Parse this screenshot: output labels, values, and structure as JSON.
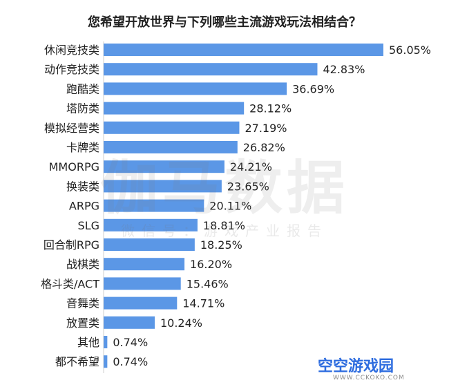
{
  "chart_data": {
    "type": "bar",
    "orientation": "horizontal",
    "title": "您希望开放世界与下列哪些主流游戏玩法相结合？",
    "categories": [
      "休闲竞技类",
      "动作竞技类",
      "跑酷类",
      "塔防类",
      "模拟经营类",
      "卡牌类",
      "MMORPG",
      "换装类",
      "ARPG",
      "SLG",
      "回合制RPG",
      "战棋类",
      "格斗类/ACT",
      "音舞类",
      "放置类",
      "其他",
      "都不希望"
    ],
    "values": [
      56.05,
      42.83,
      36.69,
      28.12,
      27.19,
      26.82,
      24.21,
      23.65,
      20.11,
      18.81,
      18.25,
      16.2,
      15.46,
      14.71,
      10.24,
      0.74,
      0.74
    ],
    "value_labels": [
      "56.05%",
      "42.83%",
      "36.69%",
      "28.12%",
      "27.19%",
      "26.82%",
      "24.21%",
      "23.65%",
      "20.11%",
      "18.81%",
      "18.25%",
      "16.20%",
      "15.46%",
      "14.71%",
      "10.24%",
      "0.74%",
      "0.74%"
    ],
    "xlim": [
      0,
      56.05
    ],
    "bar_color": "#5b97e6",
    "grid": false,
    "legend": "none"
  },
  "watermark": {
    "main": "伽马数据",
    "sub": "微信号：游戏产业报告"
  },
  "logo": {
    "text": "空空游戏园",
    "url": "WWW.CCKOKO.COM",
    "color": "#2d6cdf"
  }
}
